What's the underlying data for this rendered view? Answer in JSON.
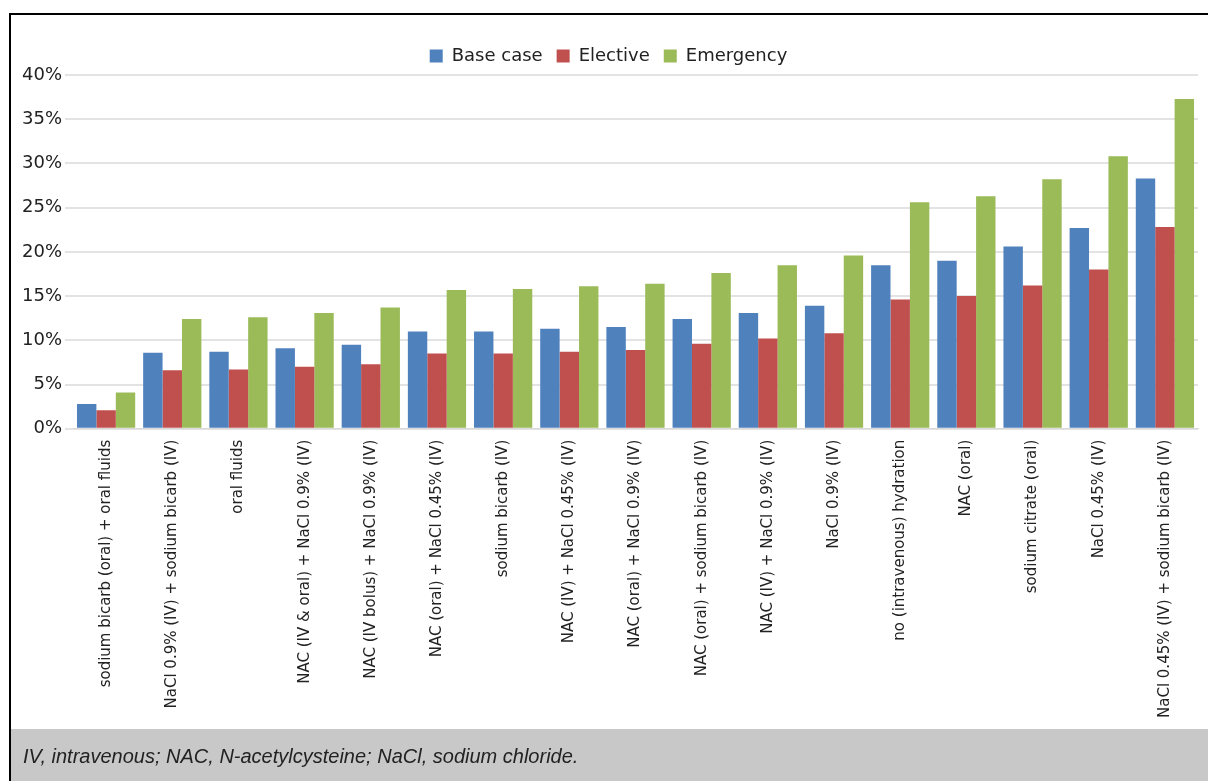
{
  "chart_data": {
    "type": "bar",
    "categories": [
      "sodium bicarb (oral) + oral fluids",
      "NaCl 0.9% (IV) + sodium bicarb (IV)",
      "oral fluids",
      "NAC (IV & oral) + NaCl 0.9% (IV)",
      "NAC (IV bolus) + NaCl 0.9% (IV)",
      "NAC (oral) + NaCl 0.45% (IV)",
      "sodium bicarb (IV)",
      "NAC (IV) + NaCl 0.45% (IV)",
      "NAC (oral) + NaCl 0.9% (IV)",
      "NAC (oral) + sodium bicarb (IV)",
      "NAC (IV) + NaCl 0.9% (IV)",
      "NaCl 0.9% (IV)",
      "no (intravenous) hydration",
      "NAC (oral)",
      "sodium citrate (oral)",
      "NaCl 0.45% (IV)",
      "NaCl 0.45% (IV) + sodium bicarb (IV)"
    ],
    "series": [
      {
        "name": "Base case",
        "color": "#4f81bd",
        "values": [
          2.8,
          8.6,
          8.7,
          9.1,
          9.5,
          11.0,
          11.0,
          11.3,
          11.5,
          12.4,
          13.1,
          13.9,
          18.5,
          19.0,
          20.6,
          22.7,
          28.3
        ]
      },
      {
        "name": "Elective",
        "color": "#c0504d",
        "values": [
          2.1,
          6.6,
          6.7,
          7.0,
          7.3,
          8.5,
          8.5,
          8.7,
          8.9,
          9.6,
          10.2,
          10.8,
          14.6,
          15.0,
          16.2,
          18.0,
          22.8
        ]
      },
      {
        "name": "Emergency",
        "color": "#9bbb59",
        "values": [
          4.1,
          12.4,
          12.6,
          13.1,
          13.7,
          15.7,
          15.8,
          16.1,
          16.4,
          17.6,
          18.5,
          19.6,
          25.6,
          26.3,
          28.2,
          30.8,
          37.3
        ]
      }
    ],
    "ylim": [
      0,
      40
    ],
    "yticks": [
      {
        "value": 0,
        "label": "0%"
      },
      {
        "value": 5,
        "label": "5%"
      },
      {
        "value": 10,
        "label": "10%"
      },
      {
        "value": 15,
        "label": "15%"
      },
      {
        "value": 20,
        "label": "20%"
      },
      {
        "value": 25,
        "label": "25%"
      },
      {
        "value": 30,
        "label": "30%"
      },
      {
        "value": 35,
        "label": "35%"
      },
      {
        "value": 40,
        "label": "40%"
      }
    ],
    "grid": "y",
    "legend": "top",
    "annotations": [
      "IV, intravenous; NAC, N-acetylcysteine; NaCl, sodium chloride."
    ]
  }
}
